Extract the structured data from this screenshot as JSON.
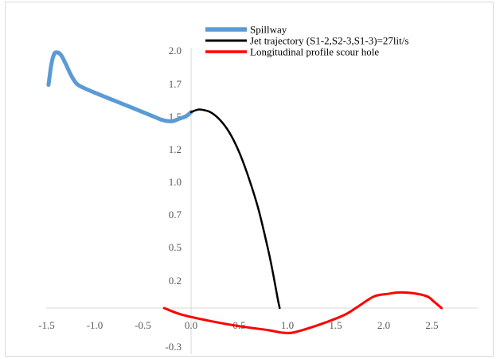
{
  "chart_data": {
    "type": "line",
    "title": "",
    "xlabel": "",
    "ylabel": "",
    "xlim": [
      -1.5,
      2.75
    ],
    "ylim": [
      -0.35,
      2.1
    ],
    "x_ticks": [
      -1.5,
      -1.0,
      -0.5,
      0.0,
      0.5,
      1.0,
      1.5,
      2.0,
      2.5
    ],
    "x_tick_labels": [
      "-1.5",
      "-1.0",
      "-0.5",
      "0.0",
      "0.5",
      "1.0",
      "1.5",
      "2.0",
      "2.5"
    ],
    "y_ticks": [
      -0.3,
      0.2,
      0.5,
      0.7,
      1.0,
      1.2,
      1.5,
      1.7,
      2.0
    ],
    "y_tick_labels": [
      "-0.3",
      "0.2",
      "0.5",
      "0.7",
      "1.0",
      "1.2",
      "1.5",
      "1.7",
      "2.0"
    ],
    "grid": false,
    "legend_position": "top-right",
    "series": [
      {
        "name": "Spillway",
        "color": "#5b9bd5",
        "width": 5,
        "points": [
          [
            -1.48,
            1.72
          ],
          [
            -1.45,
            1.88
          ],
          [
            -1.42,
            1.96
          ],
          [
            -1.39,
            1.97
          ],
          [
            -1.35,
            1.95
          ],
          [
            -1.3,
            1.88
          ],
          [
            -1.25,
            1.8
          ],
          [
            -1.2,
            1.74
          ],
          [
            -1.15,
            1.71
          ],
          [
            -1.0,
            1.66
          ],
          [
            -0.8,
            1.6
          ],
          [
            -0.6,
            1.54
          ],
          [
            -0.4,
            1.48
          ],
          [
            -0.3,
            1.45
          ],
          [
            -0.2,
            1.44
          ],
          [
            -0.12,
            1.46
          ],
          [
            -0.05,
            1.48
          ],
          [
            0.0,
            1.51
          ]
        ]
      },
      {
        "name": "Jet trajectory (S1-2,S2-3,S1-3)=27lit/s",
        "color": "#000000",
        "width": 2.5,
        "points": [
          [
            0.0,
            1.51
          ],
          [
            0.05,
            1.525
          ],
          [
            0.1,
            1.53
          ],
          [
            0.2,
            1.51
          ],
          [
            0.3,
            1.45
          ],
          [
            0.4,
            1.35
          ],
          [
            0.5,
            1.2
          ],
          [
            0.6,
            1.0
          ],
          [
            0.7,
            0.76
          ],
          [
            0.8,
            0.45
          ],
          [
            0.85,
            0.27
          ],
          [
            0.9,
            0.07
          ],
          [
            0.92,
            0.0
          ]
        ]
      },
      {
        "name": "Longitudinal profile scour hole",
        "color": "#ff0000",
        "width": 3,
        "points": [
          [
            -0.28,
            0.0
          ],
          [
            -0.1,
            -0.05
          ],
          [
            0.2,
            -0.1
          ],
          [
            0.5,
            -0.14
          ],
          [
            0.8,
            -0.17
          ],
          [
            0.95,
            -0.19
          ],
          [
            1.05,
            -0.19
          ],
          [
            1.2,
            -0.16
          ],
          [
            1.4,
            -0.11
          ],
          [
            1.6,
            -0.05
          ],
          [
            1.75,
            0.02
          ],
          [
            1.9,
            0.09
          ],
          [
            2.05,
            0.11
          ],
          [
            2.15,
            0.12
          ],
          [
            2.3,
            0.115
          ],
          [
            2.45,
            0.09
          ],
          [
            2.52,
            0.05
          ],
          [
            2.6,
            0.0
          ]
        ]
      }
    ]
  }
}
